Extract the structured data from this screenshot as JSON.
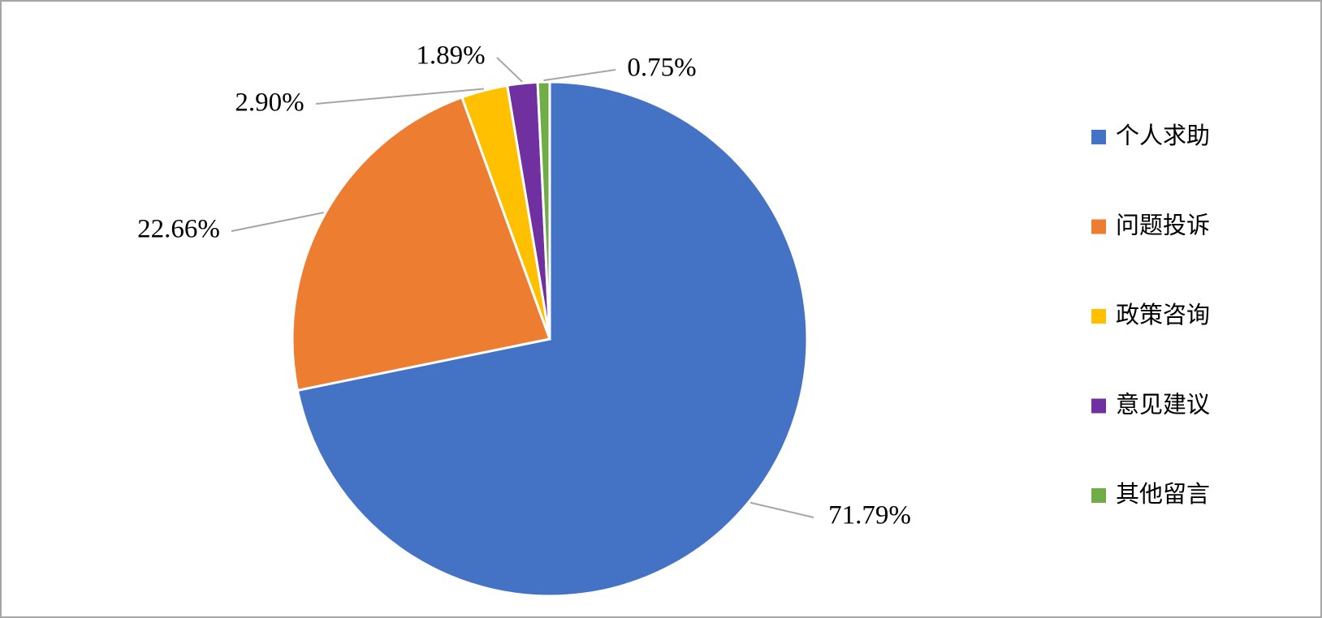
{
  "chart_data": {
    "type": "pie",
    "categories": [
      "个人求助",
      "问题投诉",
      "政策咨询",
      "意见建议",
      "其他留言"
    ],
    "values": [
      71.79,
      22.66,
      2.9,
      1.89,
      0.75
    ],
    "value_labels": [
      "71.79%",
      "22.66%",
      "2.90%",
      "1.89%",
      "0.75%"
    ],
    "colors": [
      "#4472c4",
      "#ed7d31",
      "#ffc000",
      "#7030a0",
      "#70ad47"
    ],
    "legend": "right"
  }
}
